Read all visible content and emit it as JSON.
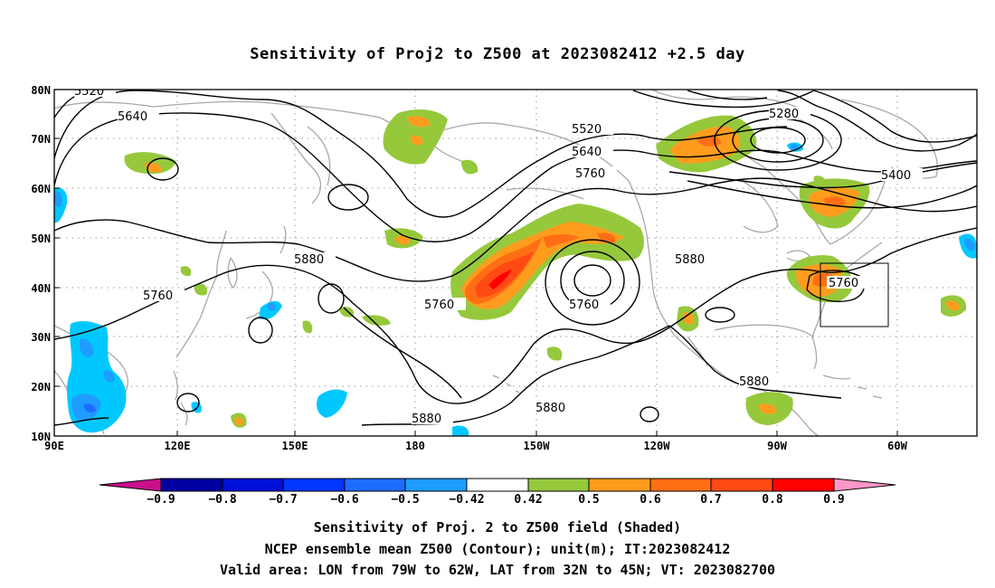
{
  "title": "Sensitivity of Proj2 to Z500 at 2023082412 +2.5 day",
  "lat_ticks": [
    "80N",
    "70N",
    "60N",
    "50N",
    "40N",
    "30N",
    "20N",
    "10N"
  ],
  "lon_ticks": [
    "90E",
    "120E",
    "150E",
    "180",
    "150W",
    "120W",
    "90W",
    "60W"
  ],
  "contour_labels": {
    "c5520a": "5520",
    "c5640a": "5640",
    "c5520b": "5520",
    "c5640b": "5640",
    "c5760a": "5760",
    "c5280": "5280",
    "c5400": "5400",
    "c5880a": "5880",
    "c5760b": "5760",
    "c5760c": "5760",
    "c5760d": "5760",
    "c5880b": "5880",
    "c5760e": "5760",
    "c5880c": "5880",
    "c5880d": "5880",
    "c5880e": "5880"
  },
  "colorbar": {
    "labels": [
      "−0.9",
      "−0.8",
      "−0.7",
      "−0.6",
      "−0.5",
      "−0.42",
      "0.42",
      "0.5",
      "0.6",
      "0.7",
      "0.8",
      "0.9"
    ],
    "colors": {
      "lt_min": "#c8108c",
      "n09": "#0000a0",
      "n08": "#0010d8",
      "n07": "#0036ff",
      "n06": "#1e6cff",
      "n05": "#1e9cff",
      "n042": "#00c8ff",
      "zero": "#ffffff",
      "p042": "#96c83c",
      "p05": "#ff9c1e",
      "p06": "#ff6e14",
      "p07": "#ff4a14",
      "p08": "#ff0000",
      "gt_max": "#ff96c8"
    }
  },
  "captions": {
    "line1": "Sensitivity of Proj. 2 to Z500 field (Shaded)",
    "line2": "NCEP ensemble mean Z500 (Contour); unit(m); IT:2023082412",
    "line3": "Valid area: LON from 79W to 62W, LAT from 32N to 45N; VT: 2023082700"
  },
  "valid_area": {
    "lon_min": -79,
    "lon_max": -62,
    "lat_min": 32,
    "lat_max": 45
  }
}
